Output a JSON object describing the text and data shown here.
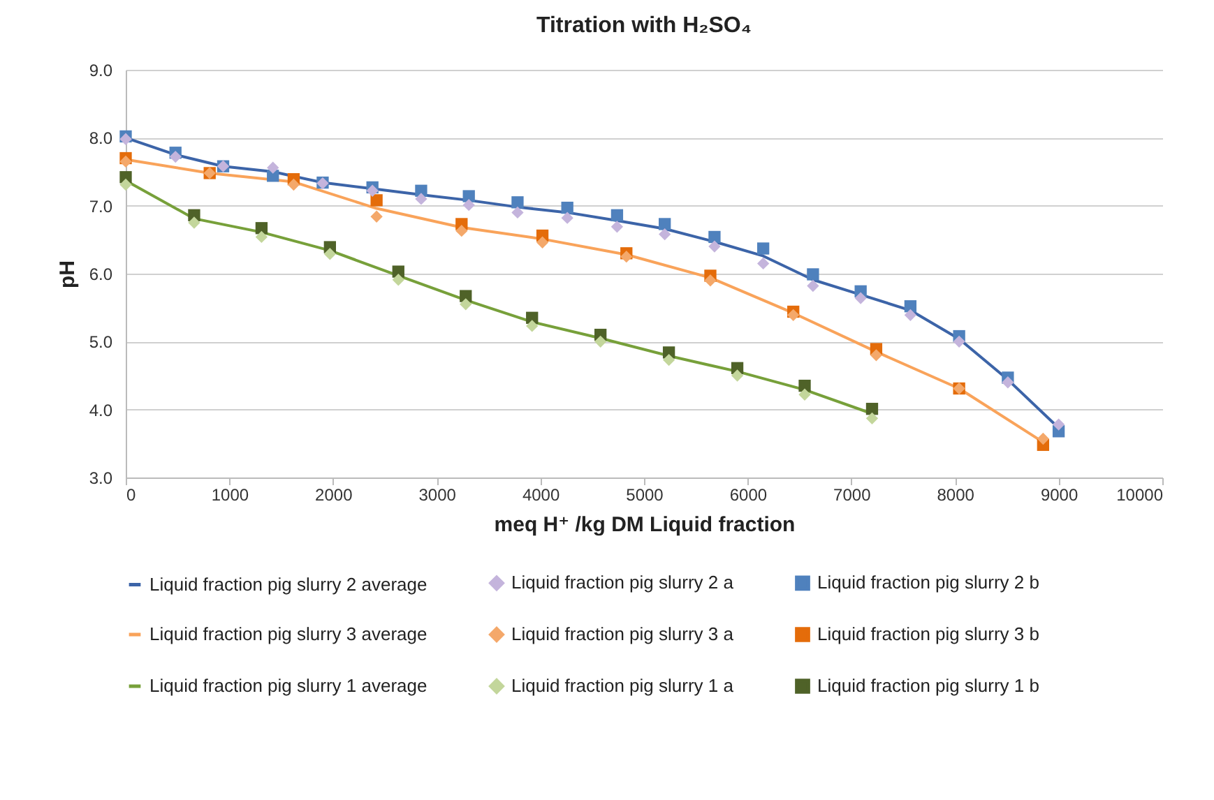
{
  "chart_data": {
    "type": "line",
    "title": "Titration with H₂SO₄",
    "xlabel": "meq H⁺ /kg DM Liquid fraction",
    "ylabel": "pH",
    "xlim": [
      0,
      10000
    ],
    "xticks": [
      0,
      1000,
      2000,
      3000,
      4000,
      5000,
      6000,
      7000,
      8000,
      9000,
      10000
    ],
    "ylim": [
      3,
      9
    ],
    "yticks": [
      {
        "value": 3,
        "label": "3.0"
      },
      {
        "value": 4,
        "label": "4.0"
      },
      {
        "value": 5,
        "label": "5.0"
      },
      {
        "value": 6,
        "label": "6.0"
      },
      {
        "value": 7,
        "label": "7.0"
      },
      {
        "value": 8,
        "label": "8.0"
      },
      {
        "value": 9,
        "label": "9.0"
      }
    ],
    "grid": "y",
    "legend": "bottom",
    "series": [
      {
        "name": "Liquid fraction pig slurry 2 average",
        "type": "line",
        "marker": "none",
        "color": "#3c64a8",
        "x": [
          0,
          480,
          940,
          1420,
          1900,
          2380,
          2850,
          3310,
          3780,
          4260,
          4740,
          5200,
          5680,
          6150,
          6630,
          7090,
          7570,
          8040,
          8510,
          9000
        ],
        "values": [
          8.0,
          7.75,
          7.58,
          7.5,
          7.34,
          7.25,
          7.16,
          7.08,
          6.98,
          6.9,
          6.78,
          6.66,
          6.47,
          6.26,
          5.91,
          5.69,
          5.46,
          5.04,
          4.44,
          3.73
        ]
      },
      {
        "name": "Liquid fraction pig slurry 2 a",
        "type": "scatter",
        "marker": "diamond",
        "color": "#c4b4dc",
        "x": [
          0,
          480,
          940,
          1420,
          1900,
          2380,
          2850,
          3310,
          3780,
          4260,
          4740,
          5200,
          5680,
          6150,
          6630,
          7090,
          7570,
          8040,
          8510,
          9000
        ],
        "values": [
          7.98,
          7.72,
          7.58,
          7.56,
          7.33,
          7.22,
          7.1,
          7.01,
          6.9,
          6.82,
          6.69,
          6.58,
          6.4,
          6.15,
          5.82,
          5.64,
          5.39,
          5.0,
          4.4,
          3.78
        ]
      },
      {
        "name": "Liquid fraction pig slurry 2 b",
        "type": "scatter",
        "marker": "square",
        "color": "#4f81bd",
        "x": [
          0,
          480,
          940,
          1420,
          1900,
          2380,
          2850,
          3310,
          3780,
          4260,
          4740,
          5200,
          5680,
          6150,
          6630,
          7090,
          7570,
          8040,
          8510,
          9000
        ],
        "values": [
          8.02,
          7.78,
          7.58,
          7.44,
          7.34,
          7.27,
          7.22,
          7.14,
          7.05,
          6.97,
          6.86,
          6.73,
          6.54,
          6.37,
          5.99,
          5.74,
          5.52,
          5.08,
          4.47,
          3.68
        ]
      },
      {
        "name": "Liquid fraction pig slurry 3 average",
        "type": "line",
        "marker": "none",
        "color": "#f9a35a",
        "x": [
          0,
          810,
          1620,
          2420,
          3240,
          4020,
          4830,
          5640,
          6440,
          7240,
          8040,
          8850
        ],
        "values": [
          7.68,
          7.48,
          7.35,
          6.96,
          6.68,
          6.51,
          6.28,
          5.94,
          5.42,
          4.85,
          4.31,
          3.52
        ]
      },
      {
        "name": "Liquid fraction pig slurry 3 a",
        "type": "scatter",
        "marker": "diamond",
        "color": "#f4a86a",
        "x": [
          0,
          810,
          1620,
          2420,
          3240,
          4020,
          4830,
          5640,
          6440,
          7240,
          8040,
          8850
        ],
        "values": [
          7.65,
          7.48,
          7.31,
          6.84,
          6.63,
          6.46,
          6.25,
          5.9,
          5.39,
          4.8,
          4.31,
          3.57
        ]
      },
      {
        "name": "Liquid fraction pig slurry 3 b",
        "type": "scatter",
        "marker": "square",
        "color": "#e46c0a",
        "x": [
          0,
          810,
          1620,
          2420,
          3240,
          4020,
          4830,
          5640,
          6440,
          7240,
          8040,
          8850
        ],
        "values": [
          7.7,
          7.48,
          7.39,
          7.08,
          6.73,
          6.56,
          6.3,
          5.97,
          5.44,
          4.89,
          4.31,
          3.48
        ]
      },
      {
        "name": "Liquid fraction pig slurry 1 average",
        "type": "line",
        "marker": "none",
        "color": "#77a03a",
        "x": [
          0,
          660,
          1310,
          1970,
          2630,
          3280,
          3920,
          4580,
          5240,
          5900,
          6550,
          7200
        ],
        "values": [
          7.37,
          6.81,
          6.61,
          6.34,
          5.97,
          5.61,
          5.29,
          5.05,
          4.79,
          4.56,
          4.29,
          3.94
        ]
      },
      {
        "name": "Liquid fraction pig slurry 1 a",
        "type": "scatter",
        "marker": "diamond",
        "color": "#c3d69b",
        "x": [
          0,
          660,
          1310,
          1970,
          2630,
          3280,
          3920,
          4580,
          5240,
          5900,
          6550,
          7200
        ],
        "values": [
          7.31,
          6.75,
          6.54,
          6.29,
          5.91,
          5.55,
          5.23,
          5.0,
          4.73,
          4.5,
          4.22,
          3.87
        ]
      },
      {
        "name": "Liquid fraction pig slurry 1 b",
        "type": "scatter",
        "marker": "square",
        "color": "#4f6228",
        "x": [
          0,
          660,
          1310,
          1970,
          2630,
          3280,
          3920,
          4580,
          5240,
          5900,
          6550,
          7200
        ],
        "values": [
          7.42,
          6.86,
          6.67,
          6.39,
          6.03,
          5.67,
          5.35,
          5.1,
          4.84,
          4.61,
          4.35,
          4.01
        ]
      }
    ]
  }
}
